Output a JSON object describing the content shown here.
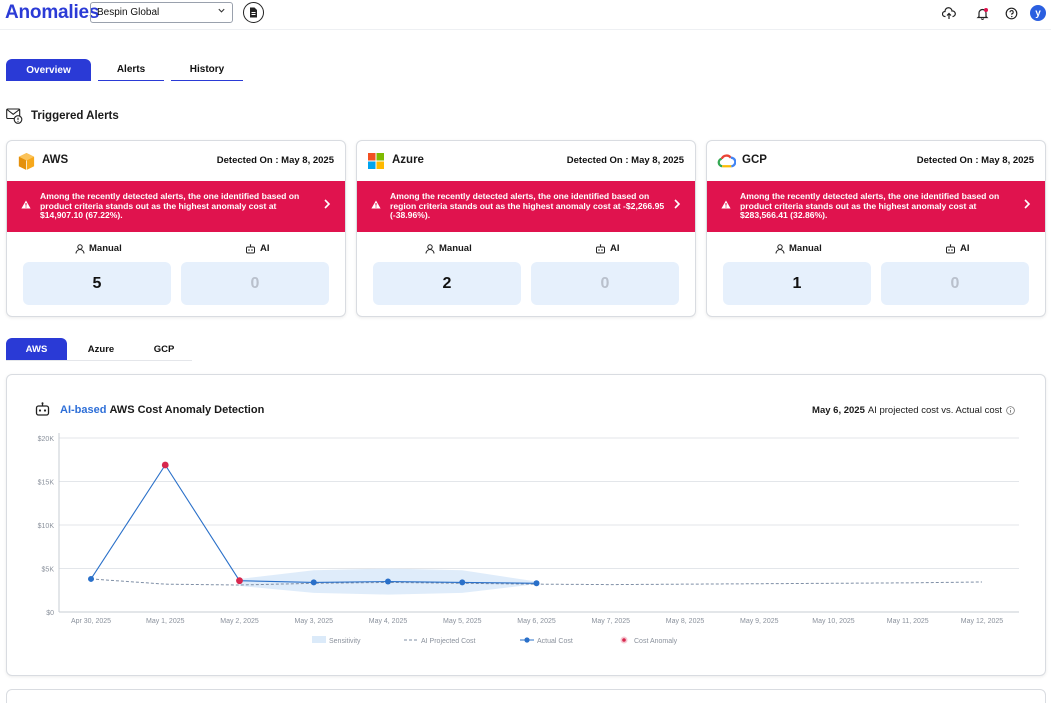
{
  "header": {
    "title": "Anomalies",
    "org_select": "Bespin Global",
    "user_initial": "y",
    "icons": [
      "upload-cloud-icon",
      "bell-icon",
      "help-icon"
    ]
  },
  "main_tabs": [
    "Overview",
    "Alerts",
    "History"
  ],
  "section_title": "Triggered Alerts",
  "cards": [
    {
      "provider": "AWS",
      "detected": "Detected On : May 8, 2025",
      "alert": "Among the recently detected alerts, the one identified based on product criteria stands out as the highest anomaly cost at $14,907.10 (67.22%).",
      "manual_label": "Manual",
      "ai_label": "AI",
      "manual_count": "5",
      "ai_count": "0"
    },
    {
      "provider": "Azure",
      "detected": "Detected On : May 8, 2025",
      "alert": "Among the recently detected alerts, the one identified based on region criteria stands out as the highest anomaly cost at -$2,266.95 (-38.96%).",
      "manual_label": "Manual",
      "ai_label": "AI",
      "manual_count": "2",
      "ai_count": "0"
    },
    {
      "provider": "GCP",
      "detected": "Detected On : May 8, 2025",
      "alert": "Among the recently detected alerts, the one identified based on product criteria stands out as the highest anomaly cost at $283,566.41 (32.86%).",
      "manual_label": "Manual",
      "ai_label": "AI",
      "manual_count": "1",
      "ai_count": "0"
    }
  ],
  "provider_tabs": [
    "AWS",
    "Azure",
    "GCP"
  ],
  "chart": {
    "title_prefix": "AI-based",
    "title_rest": "AWS Cost Anomaly Detection",
    "subtitle_date": "May 6, 2025",
    "subtitle_rest": "AI projected cost vs. Actual cost"
  },
  "chart_data": {
    "type": "line",
    "x": [
      "Apr 30, 2025",
      "May 1, 2025",
      "May 2, 2025",
      "May 3, 2025",
      "May 4, 2025",
      "May 5, 2025",
      "May 6, 2025",
      "May 7, 2025",
      "May 8, 2025",
      "May 9, 2025",
      "May 10, 2025",
      "May 11, 2025",
      "May 12, 2025"
    ],
    "y_ticks": [
      "$0",
      "$5K",
      "$10K",
      "$15K",
      "$20K"
    ],
    "ylim": [
      0,
      20000
    ],
    "series": [
      {
        "name": "AI Projected Cost",
        "values": [
          3800,
          3200,
          3100,
          3300,
          3400,
          3300,
          3200,
          3150,
          3200,
          3250,
          3300,
          3350,
          3450
        ],
        "style": "dashed",
        "color": "#7f8fa6"
      },
      {
        "name": "Actual Cost",
        "values": [
          3800,
          16900,
          3600,
          3400,
          3500,
          3400,
          3300,
          null,
          null,
          null,
          null,
          null,
          null
        ],
        "color": "#2a70c9"
      }
    ],
    "sensitivity": {
      "name": "Sensitivity",
      "upper": [
        null,
        null,
        3800,
        4800,
        5000,
        4800,
        3500,
        null,
        null,
        null,
        null,
        null,
        null
      ],
      "lower": [
        null,
        null,
        3000,
        2200,
        2000,
        2200,
        3200,
        null,
        null,
        null,
        null,
        null,
        null
      ],
      "color": "#dbeaf9"
    },
    "anomalies": [
      {
        "x": "May 1, 2025",
        "value": 16900
      },
      {
        "x": "May 2, 2025",
        "value": 3600
      }
    ],
    "anomaly_name": "Cost Anomaly",
    "anomaly_color": "#d7274e",
    "grid": true,
    "legend": "bottom"
  }
}
